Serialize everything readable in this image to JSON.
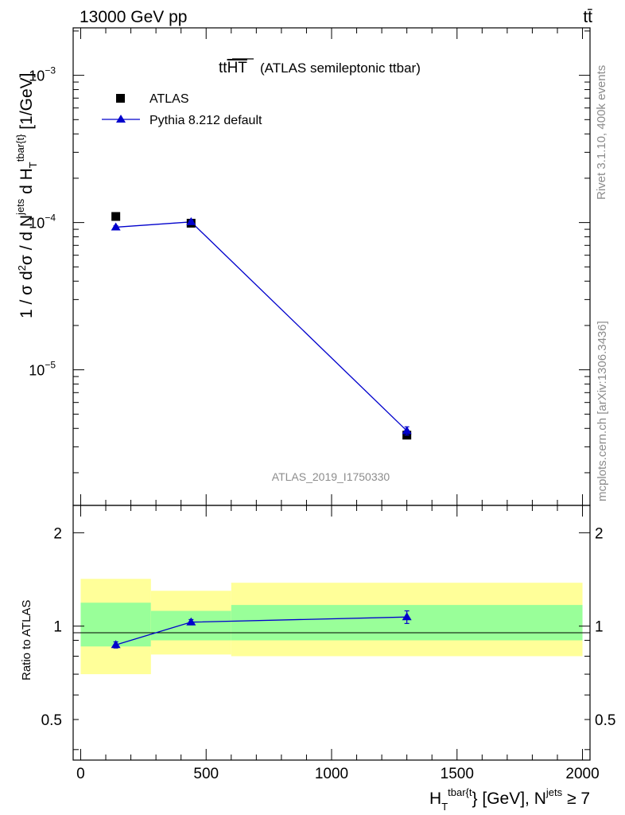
{
  "header": {
    "energy_label": "13000 GeV pp",
    "process_label": "tt̄"
  },
  "side": {
    "rivet": "Rivet 3.1.10,  400k events",
    "mcplots": "mcplots.cern.ch [arXiv:1306.3436]"
  },
  "watermark": "ATLAS_2019_I1750330",
  "title": {
    "main": "tt",
    "over": "HT",
    "sub": "(ATLAS semileptonic ttbar)"
  },
  "legend": {
    "data_label": "ATLAS",
    "mc_label": "Pythia 8.212 default"
  },
  "axes": {
    "ylabel_main": "1 / σ d²σ / d N^jets d H_T^tbar{t} [1/GeV]",
    "ylabel_ratio": "Ratio to ATLAS",
    "xlabel": "H_T^tbar{t} [GeV], N^jets ≥ 7"
  },
  "colors": {
    "data": "#000000",
    "mc": "#0000cc",
    "band_inner": "#99ff99",
    "band_outer": "#ffff99"
  },
  "chart_data": [
    {
      "type": "scatter",
      "panel": "main",
      "yscale": "log",
      "xlim": [
        -30,
        2030
      ],
      "ylim": [
        1.2e-06,
        0.0021
      ],
      "x_ticks": [
        "0",
        "500",
        "1000",
        "1500",
        "2000"
      ],
      "y_ticks": [
        "10^-5",
        "10^-4",
        "10^-3"
      ],
      "series": [
        {
          "name": "ATLAS",
          "marker": "square",
          "x": [
            140,
            440,
            1300
          ],
          "y": [
            0.00011,
            9.9e-05,
            3.6e-06
          ]
        },
        {
          "name": "Pythia 8.212 default",
          "marker": "triangle",
          "x": [
            140,
            440,
            1300
          ],
          "y": [
            9.3e-05,
            0.000101,
            3.85e-06
          ],
          "yerr": [
            2e-06,
            2.5e-06,
            2.5e-07
          ]
        }
      ]
    },
    {
      "type": "line",
      "panel": "ratio",
      "yscale": "log",
      "ylim": [
        0.37,
        2.45
      ],
      "y_ticks": [
        "0.5",
        "1",
        "2"
      ],
      "bands": {
        "bins": [
          [
            0,
            280
          ],
          [
            280,
            600
          ],
          [
            600,
            2000
          ]
        ],
        "outer": [
          [
            0.7,
            1.42
          ],
          [
            0.81,
            1.3
          ],
          [
            0.8,
            1.38
          ]
        ],
        "inner": [
          [
            0.86,
            1.19
          ],
          [
            0.9,
            1.12
          ],
          [
            0.9,
            1.17
          ]
        ]
      },
      "series": [
        {
          "name": "Pythia 8.212 default",
          "x": [
            140,
            440,
            1300
          ],
          "y": [
            0.87,
            1.03,
            1.07
          ],
          "yerr": [
            0.02,
            0.02,
            0.05
          ]
        }
      ]
    }
  ]
}
